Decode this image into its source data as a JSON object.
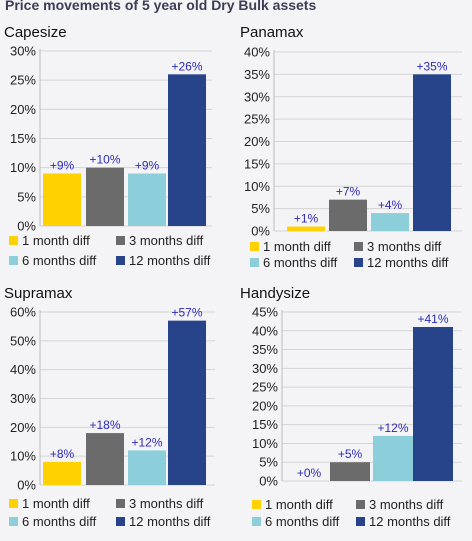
{
  "page_title": "Price movements of 5 year old Dry Bulk assets",
  "colors": {
    "1 month diff": "#ffd100",
    "3 months diff": "#6b6b6b",
    "6 months diff": "#8ccfdb",
    "12 months diff": "#27438a",
    "data_label": "#2d2ab8",
    "grid": "#d4d4d4"
  },
  "chart_data": [
    {
      "type": "bar",
      "title": "Capesize",
      "categories": [
        "1 month diff",
        "3 months diff",
        "6 months diff",
        "12 months diff"
      ],
      "values": [
        9,
        10,
        9,
        26
      ],
      "data_labels": [
        "+9%",
        "+10%",
        "+9%",
        "+26%"
      ],
      "ylim": [
        0,
        30
      ],
      "yticks": [
        0,
        5,
        10,
        15,
        20,
        25,
        30
      ],
      "ytick_labels": [
        "0%",
        "5%",
        "10%",
        "15%",
        "20%",
        "25%",
        "30%"
      ],
      "grid": true,
      "legend": "bottom"
    },
    {
      "type": "bar",
      "title": "Panamax",
      "categories": [
        "1 month diff",
        "3 months diff",
        "6 months diff",
        "12 months diff"
      ],
      "values": [
        1,
        7,
        4,
        35
      ],
      "data_labels": [
        "+1%",
        "+7%",
        "+4%",
        "+35%"
      ],
      "ylim": [
        0,
        40
      ],
      "yticks": [
        0,
        5,
        10,
        15,
        20,
        25,
        30,
        35,
        40
      ],
      "ytick_labels": [
        "0%",
        "5%",
        "10%",
        "15%",
        "20%",
        "25%",
        "30%",
        "35%",
        "40%"
      ],
      "grid": true,
      "legend": "bottom"
    },
    {
      "type": "bar",
      "title": "Supramax",
      "categories": [
        "1 month diff",
        "3 months diff",
        "6 months diff",
        "12 months diff"
      ],
      "values": [
        8,
        18,
        12,
        57
      ],
      "data_labels": [
        "+8%",
        "+18%",
        "+12%",
        "+57%"
      ],
      "ylim": [
        0,
        60
      ],
      "yticks": [
        0,
        10,
        20,
        30,
        40,
        50,
        60
      ],
      "ytick_labels": [
        "0%",
        "10%",
        "20%",
        "30%",
        "40%",
        "50%",
        "60%"
      ],
      "grid": true,
      "legend": "bottom"
    },
    {
      "type": "bar",
      "title": "Handysize",
      "categories": [
        "1 month diff",
        "3 months diff",
        "6 months diff",
        "12 months diff"
      ],
      "values": [
        0,
        5,
        12,
        41
      ],
      "data_labels": [
        "+0%",
        "+5%",
        "+12%",
        "+41%"
      ],
      "ylim": [
        0,
        45
      ],
      "yticks": [
        0,
        5,
        10,
        15,
        20,
        25,
        30,
        35,
        40,
        45
      ],
      "ytick_labels": [
        "0%",
        "5%",
        "10%",
        "15%",
        "20%",
        "25%",
        "30%",
        "35%",
        "40%",
        "45%"
      ],
      "grid": true,
      "legend": "bottom"
    }
  ]
}
